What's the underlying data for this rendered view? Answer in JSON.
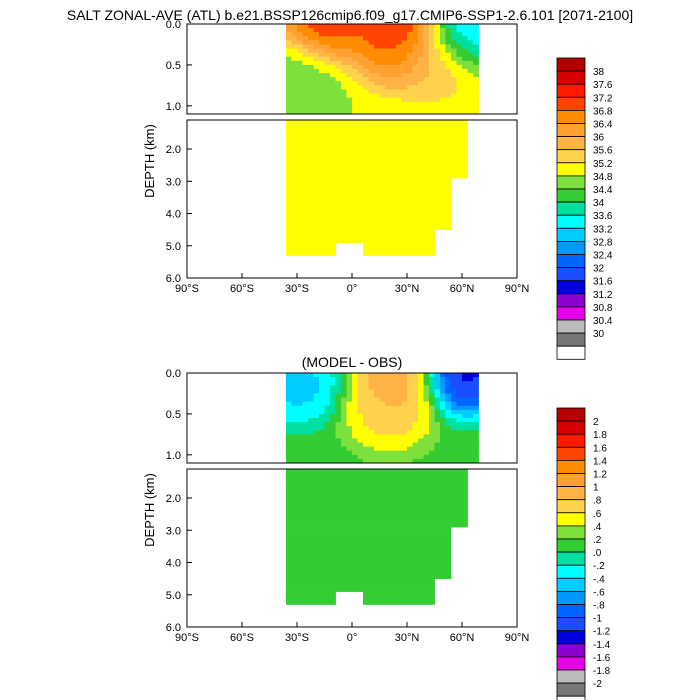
{
  "figure": {
    "title": "SALT ZONAL-AVE (ATL) b.e21.BSSP126cmip6.f09_g17.CMIP6-SSP1-2.6.101 [2071-2100]"
  },
  "chart_data": [
    {
      "type": "heatmap",
      "panel": "model",
      "title": "",
      "ylabel": "DEPTH (km)",
      "xlabel": "",
      "x_ticks": [
        "90°S",
        "60°S",
        "30°S",
        "0°",
        "30°N",
        "60°N",
        "90°N"
      ],
      "x_tick_values": [
        -90,
        -60,
        -30,
        0,
        30,
        60,
        90
      ],
      "y_ticks_upper": [
        "0.0",
        "0.5",
        "1.0"
      ],
      "y_tick_values_upper": [
        0.0,
        0.5,
        1.0
      ],
      "y_ticks_lower": [
        "2.0",
        "3.0",
        "4.0",
        "5.0",
        "6.0"
      ],
      "y_tick_values_lower": [
        2.0,
        3.0,
        4.0,
        5.0,
        6.0
      ],
      "ylim_upper": [
        0.0,
        1.1
      ],
      "ylim_lower": [
        1.1,
        6.0
      ],
      "xlim": [
        -90,
        90
      ],
      "colorbar_levels": [
        "38",
        "37.6",
        "37.2",
        "36.8",
        "36.4",
        "36",
        "35.6",
        "35.2",
        "34.8",
        "34.4",
        "34",
        "33.6",
        "33.2",
        "32.8",
        "32.4",
        "32",
        "31.6",
        "31.2",
        "30.8",
        "30.4",
        "30"
      ],
      "colorbar_colors": [
        "#b30000",
        "#d60000",
        "#ff1a00",
        "#ff4400",
        "#ff8c00",
        "#ffa030",
        "#ffb347",
        "#ffd24d",
        "#ffff00",
        "#7ee03c",
        "#33cc33",
        "#00e0a0",
        "#00ffff",
        "#00ccff",
        "#0099ff",
        "#0066ff",
        "#1a4dff",
        "#0000dd",
        "#8b00cc",
        "#e600e6",
        "#bbbbbb",
        "#777777",
        "#ffffff"
      ],
      "background_value": 34.8,
      "shallow_features": [
        {
          "lat": 25,
          "depth": 0.05,
          "value": 38.0
        },
        {
          "lat": 25,
          "depth": 0.3,
          "value": 36.8
        },
        {
          "lat": -15,
          "depth": 0.02,
          "value": 37.6
        },
        {
          "lat": 45,
          "depth": 0.5,
          "value": 35.6
        },
        {
          "lat": -30,
          "depth": 0.6,
          "value": 34.4
        },
        {
          "lat": 60,
          "depth": 0.1,
          "value": 32.8
        }
      ],
      "deep_features": [
        {
          "lat": 30,
          "depth": 1.6,
          "value": 35.2
        },
        {
          "lat": 0,
          "depth": 3.0,
          "value": 34.8
        }
      ]
    },
    {
      "type": "heatmap",
      "panel": "model-minus-obs",
      "title": "(MODEL - OBS)",
      "ylabel": "DEPTH (km)",
      "xlabel": "",
      "x_ticks": [
        "90°S",
        "60°S",
        "30°S",
        "0°",
        "30°N",
        "60°N",
        "90°N"
      ],
      "x_tick_values": [
        -90,
        -60,
        -30,
        0,
        30,
        60,
        90
      ],
      "y_ticks_upper": [
        "0.0",
        "0.5",
        "1.0"
      ],
      "y_tick_values_upper": [
        0.0,
        0.5,
        1.0
      ],
      "y_ticks_lower": [
        "2.0",
        "3.0",
        "4.0",
        "5.0",
        "6.0"
      ],
      "y_tick_values_lower": [
        2.0,
        3.0,
        4.0,
        5.0,
        6.0
      ],
      "ylim_upper": [
        0.0,
        1.1
      ],
      "ylim_lower": [
        1.1,
        6.0
      ],
      "xlim": [
        -90,
        90
      ],
      "colorbar_levels": [
        "2",
        "1.8",
        "1.6",
        "1.4",
        "1.2",
        "1",
        ".8",
        ".6",
        ".4",
        ".2",
        ".0",
        "-.2",
        "-.4",
        "-.6",
        "-.8",
        "-1",
        "-1.2",
        "-1.4",
        "-1.6",
        "-1.8",
        "-2"
      ],
      "colorbar_colors": [
        "#b30000",
        "#d60000",
        "#ff1a00",
        "#ff4400",
        "#ff8c00",
        "#ffa030",
        "#ffb347",
        "#ffd24d",
        "#ffff00",
        "#7ee03c",
        "#33cc33",
        "#00e0a0",
        "#00ffff",
        "#00ccff",
        "#0099ff",
        "#0066ff",
        "#1a4dff",
        "#0000dd",
        "#8b00cc",
        "#e600e6",
        "#bbbbbb",
        "#777777",
        "#ffffff"
      ],
      "background_value": 0.1,
      "shallow_features": [
        {
          "lat": 25,
          "depth": 0.1,
          "value": 1.2
        },
        {
          "lat": 20,
          "depth": 0.5,
          "value": 0.8
        },
        {
          "lat": -30,
          "depth": 0.15,
          "value": -0.6
        },
        {
          "lat": 60,
          "depth": 0.02,
          "value": -1.6
        }
      ],
      "deep_features": [
        {
          "lat": 30,
          "depth": 2.5,
          "value": 0.2
        },
        {
          "lat": 0,
          "depth": 3.5,
          "value": 0.1
        }
      ]
    }
  ]
}
